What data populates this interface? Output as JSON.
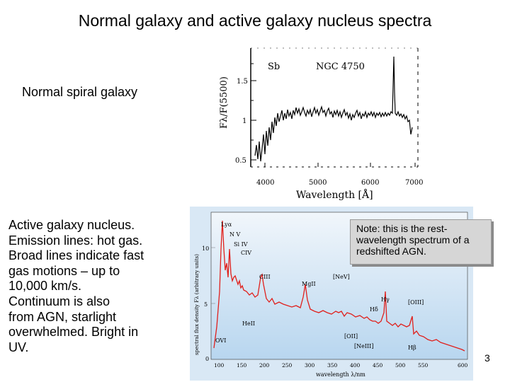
{
  "slide": {
    "title": "Normal galaxy and active galaxy nucleus spectra",
    "page_number": "3"
  },
  "normal_galaxy": {
    "label": "Normal spiral galaxy",
    "plot": {
      "type_label": "Sb",
      "object_label": "NGC 4750",
      "ylabel": "Fλ/F(5500)",
      "xlabel": "Wavelength [Å]",
      "y_ticks": [
        "1.5",
        "1",
        "0.5"
      ],
      "x_ticks": [
        "4000",
        "5000",
        "6000",
        "7000"
      ]
    }
  },
  "agn": {
    "lines": [
      "Active galaxy nucleus.",
      "Emission lines: hot gas.",
      "Broad lines indicate fast",
      "gas motions – up to",
      "10,000 km/s.",
      "Continuum is also",
      "from AGN, starlight",
      "overwhelmed.  Bright in",
      "UV."
    ],
    "plot": {
      "ylabel": "spectral flux density Fλ (arbitrary units)",
      "xlabel": "wavelength λ/nm",
      "y_ticks": [
        "10",
        "5",
        "0"
      ],
      "x_ticks": [
        "100",
        "150",
        "200",
        "250",
        "300",
        "350",
        "400",
        "450",
        "500",
        "550",
        "600"
      ],
      "line_labels": [
        "Lyα",
        "N V",
        "Si IV",
        "CIV",
        "CIII",
        "HeII",
        "MgII",
        "[NeV]",
        "Hδ",
        "Hγ",
        "[OIII]",
        "[OII]",
        "[NeIII]",
        "Hβ",
        "OVI"
      ]
    },
    "note": "Note: this is the rest-wavelength spectrum of a redshifted AGN."
  }
}
